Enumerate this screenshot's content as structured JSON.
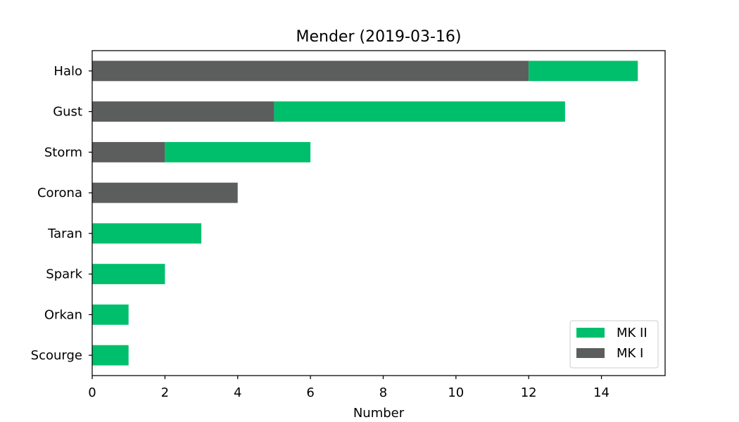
{
  "chart_data": {
    "type": "bar",
    "orientation": "horizontal",
    "stacked": true,
    "title": "Mender (2019-03-16)",
    "xlabel": "Number",
    "ylabel": "",
    "xlim": [
      0,
      15.75
    ],
    "xticks": [
      "0",
      "2",
      "4",
      "6",
      "8",
      "10",
      "12",
      "14"
    ],
    "categories": [
      "Halo",
      "Gust",
      "Storm",
      "Corona",
      "Taran",
      "Spark",
      "Orkan",
      "Scourge"
    ],
    "series": [
      {
        "name": "MK I",
        "color": "#5b5e5d",
        "values": [
          12,
          5,
          2,
          4,
          0,
          0,
          0,
          0
        ]
      },
      {
        "name": "MK II",
        "color": "#00bf6c",
        "values": [
          3,
          8,
          4,
          0,
          3,
          2,
          1,
          1
        ]
      }
    ],
    "legend": {
      "placement": "bottom-right",
      "entries": [
        "MK II",
        "MK I"
      ]
    },
    "grid": false
  }
}
